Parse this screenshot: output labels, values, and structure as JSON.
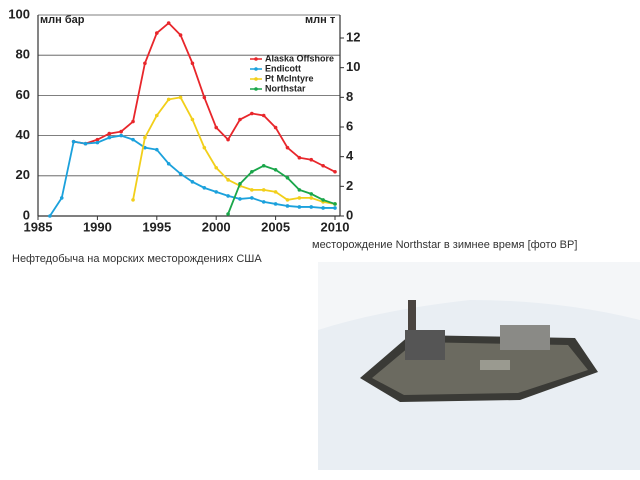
{
  "chart_data": {
    "type": "line",
    "y_label": "млн бар",
    "y2_label": "млн т",
    "x": [
      1985,
      1986,
      1987,
      1988,
      1989,
      1990,
      1991,
      1992,
      1993,
      1994,
      1995,
      1996,
      1997,
      1998,
      1999,
      2000,
      2001,
      2002,
      2003,
      2004,
      2005,
      2006,
      2007,
      2008,
      2009,
      2010
    ],
    "xlim": [
      1985,
      2010
    ],
    "xticks": [
      1985,
      1990,
      1995,
      2000,
      2005,
      2010
    ],
    "ylim": [
      0,
      100
    ],
    "yticks": [
      0,
      20,
      40,
      60,
      80,
      100
    ],
    "y2lim": [
      0,
      13.55
    ],
    "y2ticks": [
      0,
      2,
      4,
      6,
      8,
      10,
      12
    ],
    "grid": true,
    "legend": "upper right",
    "series": [
      {
        "name": "Alaska Offshore",
        "color": "#e8262b",
        "values": [
          null,
          null,
          null,
          37,
          36,
          38,
          41,
          42,
          47,
          76,
          91,
          96,
          90,
          76,
          59,
          44,
          38,
          48,
          51,
          50,
          44,
          34,
          29,
          28,
          25,
          22
        ]
      },
      {
        "name": "Endicott",
        "color": "#1ba1dc",
        "values": [
          null,
          0,
          9,
          37,
          36,
          36.5,
          39,
          40,
          38,
          34,
          33,
          26,
          21,
          17,
          14,
          12,
          10,
          8.5,
          9,
          7,
          6,
          5,
          4.5,
          4.5,
          4,
          4
        ]
      },
      {
        "name": "Pt McIntyre",
        "color": "#f2cf1a",
        "values": [
          null,
          null,
          null,
          null,
          null,
          null,
          null,
          null,
          8,
          39,
          50,
          58,
          59,
          48,
          34,
          24,
          18,
          15,
          13,
          13,
          12,
          8,
          9,
          9,
          7,
          6
        ]
      },
      {
        "name": "Northstar",
        "color": "#1aa64a",
        "values": [
          null,
          null,
          null,
          null,
          null,
          null,
          null,
          null,
          null,
          null,
          null,
          null,
          null,
          null,
          null,
          null,
          1,
          16,
          22,
          25,
          23,
          19,
          13,
          11,
          8,
          6
        ]
      }
    ]
  },
  "chart_caption": "Нефтедобыча на морских месторождениях США",
  "photo_caption": "месторождение Northstar в зимнее время [фото BP]"
}
